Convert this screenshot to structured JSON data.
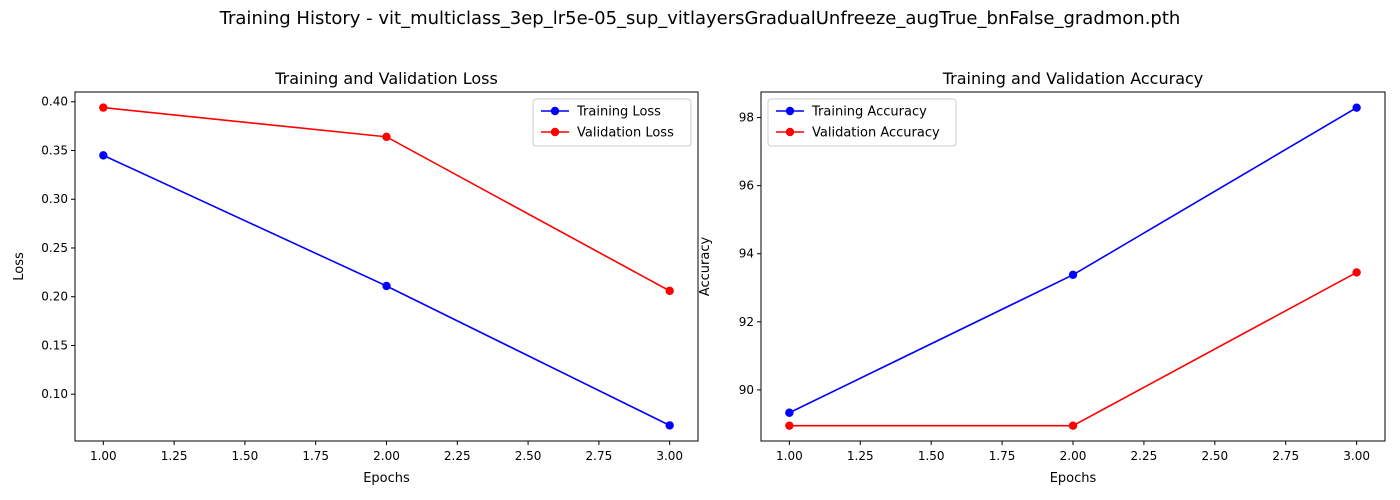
{
  "figure": {
    "suptitle": "Training History - vit_multiclass_3ep_lr5e-05_sup_vitlayersGradualUnfreeze_augTrue_bnFalse_gradmon.pth"
  },
  "colors": {
    "training": "#0000ff",
    "validation": "#ff0000"
  },
  "chart_data": [
    {
      "type": "line",
      "title": "Training and Validation Loss",
      "xlabel": "Epochs",
      "ylabel": "Loss",
      "xlim": [
        0.9,
        3.1
      ],
      "ylim": [
        0.052,
        0.41
      ],
      "xticks": [
        1.0,
        1.25,
        1.5,
        1.75,
        2.0,
        2.25,
        2.5,
        2.75,
        3.0
      ],
      "xtick_labels": [
        "1.00",
        "1.25",
        "1.50",
        "1.75",
        "2.00",
        "2.25",
        "2.50",
        "2.75",
        "3.00"
      ],
      "yticks": [
        0.1,
        0.15,
        0.2,
        0.25,
        0.3,
        0.35,
        0.4
      ],
      "ytick_labels": [
        "0.10",
        "0.15",
        "0.20",
        "0.25",
        "0.30",
        "0.35",
        "0.40"
      ],
      "grid": false,
      "legend": "upper-right",
      "x": [
        1,
        2,
        3
      ],
      "series": [
        {
          "name": "Training Loss",
          "color": "#0000ff",
          "values": [
            0.345,
            0.211,
            0.068
          ]
        },
        {
          "name": "Validation Loss",
          "color": "#ff0000",
          "values": [
            0.394,
            0.364,
            0.206
          ]
        }
      ]
    },
    {
      "type": "line",
      "title": "Training and Validation Accuracy",
      "xlabel": "Epochs",
      "ylabel": "Accuracy",
      "xlim": [
        0.9,
        3.1
      ],
      "ylim": [
        88.5,
        98.75
      ],
      "xticks": [
        1.0,
        1.25,
        1.5,
        1.75,
        2.0,
        2.25,
        2.5,
        2.75,
        3.0
      ],
      "xtick_labels": [
        "1.00",
        "1.25",
        "1.50",
        "1.75",
        "2.00",
        "2.25",
        "2.50",
        "2.75",
        "3.00"
      ],
      "yticks": [
        90,
        92,
        94,
        96,
        98
      ],
      "ytick_labels": [
        "90",
        "92",
        "94",
        "96",
        "98"
      ],
      "grid": false,
      "legend": "upper-left",
      "x": [
        1,
        2,
        3
      ],
      "series": [
        {
          "name": "Training Accuracy",
          "color": "#0000ff",
          "values": [
            89.33,
            93.38,
            98.29
          ]
        },
        {
          "name": "Validation Accuracy",
          "color": "#ff0000",
          "values": [
            88.95,
            88.95,
            93.45
          ]
        }
      ]
    }
  ]
}
